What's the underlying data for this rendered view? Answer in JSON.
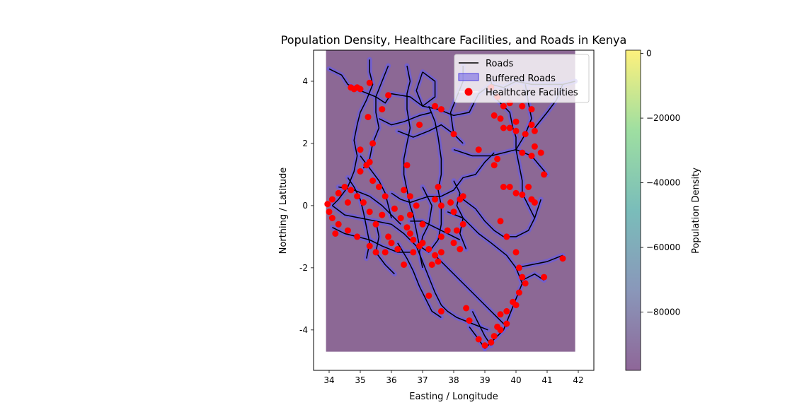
{
  "chart_data": {
    "type": "map",
    "title": "Population Density, Healthcare Facilities, and Roads in Kenya",
    "xlabel": "Easting / Longitude",
    "ylabel": "Northing / Latitude",
    "xlim": [
      33.5,
      42.5
    ],
    "ylim": [
      -5.3,
      5.0
    ],
    "raster_extent": {
      "x": [
        33.9,
        41.9
      ],
      "y": [
        -4.7,
        5.0
      ]
    },
    "x_ticks": [
      34,
      35,
      36,
      37,
      38,
      39,
      40,
      41,
      42
    ],
    "y_ticks": [
      4,
      2,
      0,
      -2,
      -4
    ],
    "legend": {
      "placement": "upper right",
      "entries": [
        "Roads",
        "Buffered Roads",
        "Healthcare Facilities"
      ]
    },
    "colorbar": {
      "label": "Population Density",
      "range": [
        -98000,
        1000
      ],
      "ticks": [
        0,
        -20000,
        -40000,
        -60000,
        -80000
      ],
      "tick_labels": [
        "0",
        "−20000",
        "−40000",
        "−60000",
        "−80000"
      ],
      "colormap": "viridis (alpha 0.6)"
    },
    "colors": {
      "background_raster": "#8c6895",
      "roads": "#000000",
      "buffer": "#6a5ce0",
      "facilities": "#ff0000"
    },
    "roads": [
      [
        [
          34.0,
          4.4
        ],
        [
          34.4,
          4.2
        ],
        [
          34.6,
          3.9
        ],
        [
          35.0,
          3.7
        ],
        [
          35.5,
          3.5
        ],
        [
          35.8,
          3.3
        ],
        [
          36.0,
          3.6
        ],
        [
          36.6,
          3.5
        ],
        [
          37.0,
          3.2
        ],
        [
          37.5,
          3.1
        ],
        [
          38.0,
          2.9
        ],
        [
          38.5,
          3.0
        ],
        [
          38.8,
          3.6
        ],
        [
          39.2,
          3.9
        ],
        [
          39.6,
          3.8
        ],
        [
          40.0,
          4.0
        ],
        [
          40.5,
          3.9
        ],
        [
          41.0,
          3.9
        ],
        [
          41.5,
          3.9
        ],
        [
          41.9,
          4.0
        ]
      ],
      [
        [
          35.3,
          4.7
        ],
        [
          35.3,
          4.3
        ],
        [
          35.4,
          3.9
        ],
        [
          35.2,
          3.4
        ],
        [
          35.0,
          3.0
        ],
        [
          34.9,
          2.6
        ],
        [
          34.8,
          2.1
        ],
        [
          34.9,
          1.6
        ],
        [
          34.8,
          1.1
        ],
        [
          34.6,
          0.6
        ],
        [
          34.3,
          0.2
        ],
        [
          34.1,
          0.0
        ]
      ],
      [
        [
          35.9,
          4.5
        ],
        [
          35.7,
          4.0
        ],
        [
          35.5,
          3.5
        ],
        [
          35.5,
          3.0
        ],
        [
          35.6,
          2.5
        ],
        [
          35.4,
          2.0
        ],
        [
          35.3,
          1.5
        ],
        [
          35.1,
          1.2
        ]
      ],
      [
        [
          36.5,
          4.5
        ],
        [
          36.6,
          4.0
        ],
        [
          36.5,
          3.6
        ],
        [
          36.5,
          3.1
        ],
        [
          36.6,
          2.5
        ],
        [
          36.5,
          2.0
        ],
        [
          36.4,
          1.5
        ],
        [
          36.4,
          1.0
        ],
        [
          36.5,
          0.5
        ],
        [
          36.6,
          0.0
        ],
        [
          36.7,
          -0.3
        ],
        [
          36.8,
          -0.8
        ],
        [
          36.9,
          -1.3
        ]
      ],
      [
        [
          37.0,
          4.3
        ],
        [
          37.4,
          4.0
        ],
        [
          37.4,
          3.5
        ],
        [
          37.0,
          3.2
        ],
        [
          36.8,
          3.7
        ],
        [
          37.0,
          4.3
        ]
      ],
      [
        [
          37.2,
          3.2
        ],
        [
          37.4,
          2.7
        ],
        [
          37.5,
          2.2
        ],
        [
          37.6,
          1.5
        ],
        [
          37.6,
          1.0
        ],
        [
          37.5,
          0.5
        ],
        [
          37.6,
          0.0
        ],
        [
          37.6,
          -0.6
        ],
        [
          37.5,
          -1.1
        ],
        [
          37.2,
          -1.5
        ],
        [
          36.9,
          -1.3
        ]
      ],
      [
        [
          38.3,
          4.5
        ],
        [
          38.3,
          4.0
        ],
        [
          38.1,
          3.5
        ],
        [
          37.9,
          3.0
        ],
        [
          38.0,
          2.3
        ],
        [
          38.3,
          2.0
        ]
      ],
      [
        [
          39.2,
          4.0
        ],
        [
          39.3,
          3.5
        ],
        [
          39.5,
          3.3
        ],
        [
          39.8,
          3.0
        ],
        [
          39.9,
          2.5
        ],
        [
          40.0,
          2.2
        ],
        [
          40.0,
          1.8
        ],
        [
          40.1,
          1.3
        ],
        [
          40.2,
          0.8
        ],
        [
          40.2,
          0.4
        ],
        [
          40.4,
          0.0
        ]
      ],
      [
        [
          40.3,
          3.9
        ],
        [
          40.4,
          3.3
        ],
        [
          40.5,
          2.8
        ],
        [
          40.3,
          2.3
        ],
        [
          40.0,
          1.8
        ]
      ],
      [
        [
          38.0,
          1.8
        ],
        [
          38.6,
          1.6
        ],
        [
          39.2,
          1.6
        ],
        [
          39.6,
          1.7
        ],
        [
          40.0,
          1.8
        ],
        [
          40.5,
          1.6
        ],
        [
          41.0,
          1.0
        ]
      ],
      [
        [
          41.5,
          3.9
        ],
        [
          41.3,
          3.4
        ],
        [
          41.0,
          3.0
        ],
        [
          40.6,
          2.5
        ]
      ],
      [
        [
          37.6,
          0.3
        ],
        [
          38.0,
          0.5
        ],
        [
          38.3,
          0.9
        ],
        [
          38.7,
          1.0
        ],
        [
          39.0,
          1.4
        ],
        [
          39.3,
          1.7
        ]
      ],
      [
        [
          38.3,
          0.2
        ],
        [
          38.7,
          -0.1
        ],
        [
          39.0,
          -0.5
        ],
        [
          39.3,
          -0.8
        ],
        [
          39.6,
          -1.0
        ],
        [
          40.0,
          -1.0
        ],
        [
          40.4,
          -0.8
        ],
        [
          40.6,
          -0.4
        ],
        [
          40.8,
          0.2
        ]
      ],
      [
        [
          37.8,
          -0.2
        ],
        [
          38.3,
          -0.4
        ],
        [
          38.8,
          -0.9
        ],
        [
          39.2,
          -1.2
        ],
        [
          39.7,
          -1.6
        ],
        [
          40.0,
          -2.0
        ],
        [
          40.2,
          -2.5
        ],
        [
          40.0,
          -3.0
        ],
        [
          39.8,
          -3.5
        ],
        [
          39.6,
          -4.0
        ],
        [
          39.2,
          -4.4
        ],
        [
          39.0,
          -4.6
        ]
      ],
      [
        [
          37.4,
          -1.6
        ],
        [
          37.8,
          -2.0
        ],
        [
          38.2,
          -2.4
        ],
        [
          38.6,
          -2.8
        ],
        [
          39.0,
          -3.2
        ],
        [
          39.4,
          -3.6
        ],
        [
          39.7,
          -3.9
        ]
      ],
      [
        [
          36.8,
          -1.3
        ],
        [
          37.0,
          -1.8
        ],
        [
          37.2,
          -2.3
        ],
        [
          37.4,
          -2.8
        ],
        [
          37.6,
          -3.2
        ],
        [
          37.8,
          -3.4
        ],
        [
          38.1,
          -3.6
        ],
        [
          38.6,
          -3.8
        ],
        [
          39.1,
          -4.0
        ]
      ],
      [
        [
          36.2,
          -1.2
        ],
        [
          36.5,
          -1.7
        ],
        [
          36.7,
          -2.1
        ],
        [
          36.9,
          -2.6
        ],
        [
          37.1,
          -3.0
        ],
        [
          37.3,
          -3.4
        ],
        [
          37.6,
          -3.6
        ]
      ],
      [
        [
          38.6,
          -3.4
        ],
        [
          38.8,
          -3.8
        ],
        [
          39.0,
          -4.2
        ],
        [
          39.2,
          -4.5
        ]
      ],
      [
        [
          40.0,
          -2.0
        ],
        [
          40.5,
          -1.9
        ],
        [
          41.0,
          -1.8
        ],
        [
          41.5,
          -1.6
        ]
      ],
      [
        [
          40.2,
          -2.4
        ],
        [
          40.6,
          -2.2
        ],
        [
          40.9,
          -2.4
        ]
      ],
      [
        [
          34.1,
          0.0
        ],
        [
          34.5,
          -0.3
        ],
        [
          35.0,
          -0.4
        ],
        [
          35.5,
          -0.5
        ],
        [
          36.0,
          -0.6
        ],
        [
          36.4,
          -0.9
        ],
        [
          36.8,
          -1.3
        ]
      ],
      [
        [
          34.3,
          0.6
        ],
        [
          34.8,
          0.5
        ],
        [
          35.3,
          0.3
        ],
        [
          35.7,
          0.0
        ],
        [
          36.0,
          -0.3
        ],
        [
          36.3,
          -0.6
        ]
      ],
      [
        [
          34.1,
          -0.7
        ],
        [
          34.5,
          -0.9
        ],
        [
          34.9,
          -1.0
        ],
        [
          35.3,
          -1.1
        ],
        [
          35.7,
          -1.3
        ],
        [
          36.2,
          -1.5
        ],
        [
          36.6,
          -1.5
        ]
      ],
      [
        [
          35.0,
          1.6
        ],
        [
          35.3,
          1.2
        ],
        [
          35.6,
          0.8
        ],
        [
          35.8,
          0.4
        ],
        [
          35.9,
          0.0
        ],
        [
          36.0,
          -0.4
        ]
      ],
      [
        [
          34.6,
          0.9
        ],
        [
          34.8,
          0.6
        ],
        [
          35.0,
          0.2
        ],
        [
          35.1,
          -0.2
        ],
        [
          35.2,
          -0.7
        ],
        [
          35.3,
          -1.2
        ],
        [
          35.2,
          -1.7
        ]
      ],
      [
        [
          35.5,
          -0.5
        ],
        [
          35.6,
          -1.0
        ],
        [
          35.5,
          -1.5
        ],
        [
          35.8,
          -1.9
        ],
        [
          36.1,
          -2.2
        ]
      ],
      [
        [
          36.0,
          0.4
        ],
        [
          36.3,
          0.2
        ],
        [
          36.6,
          0.1
        ],
        [
          36.9,
          0.2
        ],
        [
          37.2,
          0.3
        ],
        [
          37.6,
          0.3
        ]
      ],
      [
        [
          36.6,
          -0.5
        ],
        [
          37.0,
          -0.5
        ],
        [
          37.4,
          -0.7
        ],
        [
          37.8,
          -0.9
        ],
        [
          38.2,
          -1.1
        ]
      ],
      [
        [
          37.0,
          0.6
        ],
        [
          37.3,
          0.0
        ],
        [
          37.2,
          -0.6
        ],
        [
          37.0,
          -1.0
        ],
        [
          36.9,
          -1.5
        ],
        [
          37.0,
          -2.0
        ]
      ],
      [
        [
          38.0,
          0.8
        ],
        [
          38.2,
          0.4
        ],
        [
          38.1,
          0.0
        ],
        [
          38.3,
          -0.4
        ],
        [
          38.2,
          -0.9
        ],
        [
          38.4,
          -1.4
        ]
      ],
      [
        [
          36.2,
          2.4
        ],
        [
          36.7,
          2.2
        ],
        [
          37.2,
          2.4
        ],
        [
          37.6,
          2.6
        ],
        [
          38.0,
          2.3
        ]
      ],
      [
        [
          35.6,
          2.8
        ],
        [
          36.0,
          2.6
        ],
        [
          36.4,
          2.7
        ],
        [
          36.9,
          2.9
        ],
        [
          37.3,
          3.0
        ]
      ],
      [
        [
          38.5,
          -3.9
        ],
        [
          38.8,
          -4.3
        ],
        [
          39.0,
          -4.6
        ]
      ],
      [
        [
          40.4,
          0.0
        ],
        [
          40.6,
          -0.4
        ]
      ]
    ],
    "facilities": [
      [
        35.3,
        3.95
      ],
      [
        34.7,
        3.8
      ],
      [
        34.8,
        3.75
      ],
      [
        34.9,
        3.8
      ],
      [
        35.0,
        3.75
      ],
      [
        35.25,
        2.85
      ],
      [
        35.7,
        3.1
      ],
      [
        35.9,
        3.55
      ],
      [
        37.4,
        3.2
      ],
      [
        37.6,
        3.1
      ],
      [
        39.2,
        3.8
      ],
      [
        39.4,
        3.5
      ],
      [
        39.6,
        3.2
      ],
      [
        39.8,
        3.3
      ],
      [
        40.2,
        3.2
      ],
      [
        40.5,
        3.1
      ],
      [
        39.6,
        2.5
      ],
      [
        39.8,
        2.5
      ],
      [
        40.0,
        2.4
      ],
      [
        40.0,
        2.7
      ],
      [
        40.3,
        2.3
      ],
      [
        40.5,
        2.6
      ],
      [
        40.6,
        2.4
      ],
      [
        39.3,
        2.9
      ],
      [
        39.5,
        2.8
      ],
      [
        38.0,
        2.3
      ],
      [
        35.0,
        1.8
      ],
      [
        35.4,
        2.0
      ],
      [
        38.8,
        1.8
      ],
      [
        39.4,
        1.5
      ],
      [
        39.3,
        1.3
      ],
      [
        39.6,
        0.6
      ],
      [
        39.8,
        0.6
      ],
      [
        40.0,
        0.4
      ],
      [
        40.2,
        0.35
      ],
      [
        40.4,
        0.6
      ],
      [
        40.5,
        0.2
      ],
      [
        40.6,
        0.1
      ],
      [
        40.9,
        1.0
      ],
      [
        40.6,
        1.9
      ],
      [
        40.8,
        1.7
      ],
      [
        40.2,
        1.7
      ],
      [
        40.5,
        1.6
      ],
      [
        38.2,
        0.2
      ],
      [
        38.3,
        0.3
      ],
      [
        37.5,
        0.6
      ],
      [
        37.4,
        0.2
      ],
      [
        37.6,
        0.0
      ],
      [
        37.9,
        0.1
      ],
      [
        38.0,
        -0.2
      ],
      [
        36.3,
        -0.4
      ],
      [
        36.5,
        -0.7
      ],
      [
        36.6,
        -0.9
      ],
      [
        36.7,
        -1.1
      ],
      [
        36.9,
        -1.3
      ],
      [
        37.0,
        -1.2
      ],
      [
        37.2,
        -1.4
      ],
      [
        37.4,
        -1.6
      ],
      [
        37.5,
        -1.8
      ],
      [
        37.3,
        -1.9
      ],
      [
        37.6,
        -1.0
      ],
      [
        37.8,
        -0.8
      ],
      [
        38.0,
        -1.2
      ],
      [
        38.2,
        -1.4
      ],
      [
        38.1,
        -0.8
      ],
      [
        36.2,
        -1.4
      ],
      [
        36.0,
        -1.2
      ],
      [
        35.8,
        -1.5
      ],
      [
        35.5,
        -1.5
      ],
      [
        35.9,
        -1.0
      ],
      [
        35.3,
        -1.3
      ],
      [
        34.9,
        -1.0
      ],
      [
        34.6,
        -0.8
      ],
      [
        34.3,
        -0.6
      ],
      [
        34.1,
        -0.4
      ],
      [
        34.0,
        -0.2
      ],
      [
        33.95,
        0.05
      ],
      [
        34.1,
        0.2
      ],
      [
        34.3,
        0.4
      ],
      [
        34.5,
        0.6
      ],
      [
        34.7,
        0.5
      ],
      [
        34.9,
        0.3
      ],
      [
        35.1,
        0.1
      ],
      [
        35.3,
        -0.2
      ],
      [
        35.5,
        -0.6
      ],
      [
        35.7,
        -0.3
      ],
      [
        35.0,
        1.1
      ],
      [
        35.2,
        1.3
      ],
      [
        35.4,
        0.8
      ],
      [
        35.6,
        0.6
      ],
      [
        35.8,
        0.3
      ],
      [
        36.4,
        0.5
      ],
      [
        36.6,
        0.3
      ],
      [
        36.8,
        0.0
      ],
      [
        36.6,
        -0.3
      ],
      [
        37.0,
        -0.6
      ],
      [
        39.5,
        -0.5
      ],
      [
        39.7,
        -1.0
      ],
      [
        40.0,
        -1.5
      ],
      [
        40.1,
        -2.0
      ],
      [
        40.2,
        -2.3
      ],
      [
        40.3,
        -2.5
      ],
      [
        40.9,
        -2.3
      ],
      [
        41.5,
        -1.7
      ],
      [
        40.1,
        -2.8
      ],
      [
        40.0,
        -3.2
      ],
      [
        39.9,
        -3.1
      ],
      [
        39.7,
        -3.4
      ],
      [
        39.5,
        -3.5
      ],
      [
        39.7,
        -3.8
      ],
      [
        39.5,
        -4.0
      ],
      [
        39.3,
        -4.2
      ],
      [
        39.2,
        -4.4
      ],
      [
        39.0,
        -4.5
      ],
      [
        38.8,
        -4.3
      ],
      [
        39.4,
        -3.9
      ],
      [
        38.5,
        -3.7
      ],
      [
        38.4,
        -3.3
      ],
      [
        37.6,
        -3.4
      ],
      [
        37.2,
        -2.9
      ],
      [
        36.4,
        -1.9
      ],
      [
        36.7,
        -1.5
      ],
      [
        37.6,
        -1.5
      ],
      [
        38.3,
        -0.6
      ],
      [
        36.9,
        2.6
      ],
      [
        36.5,
        1.3
      ],
      [
        35.3,
        1.4
      ],
      [
        34.6,
        0.1
      ],
      [
        34.2,
        -0.9
      ],
      [
        36.1,
        -0.1
      ]
    ]
  }
}
